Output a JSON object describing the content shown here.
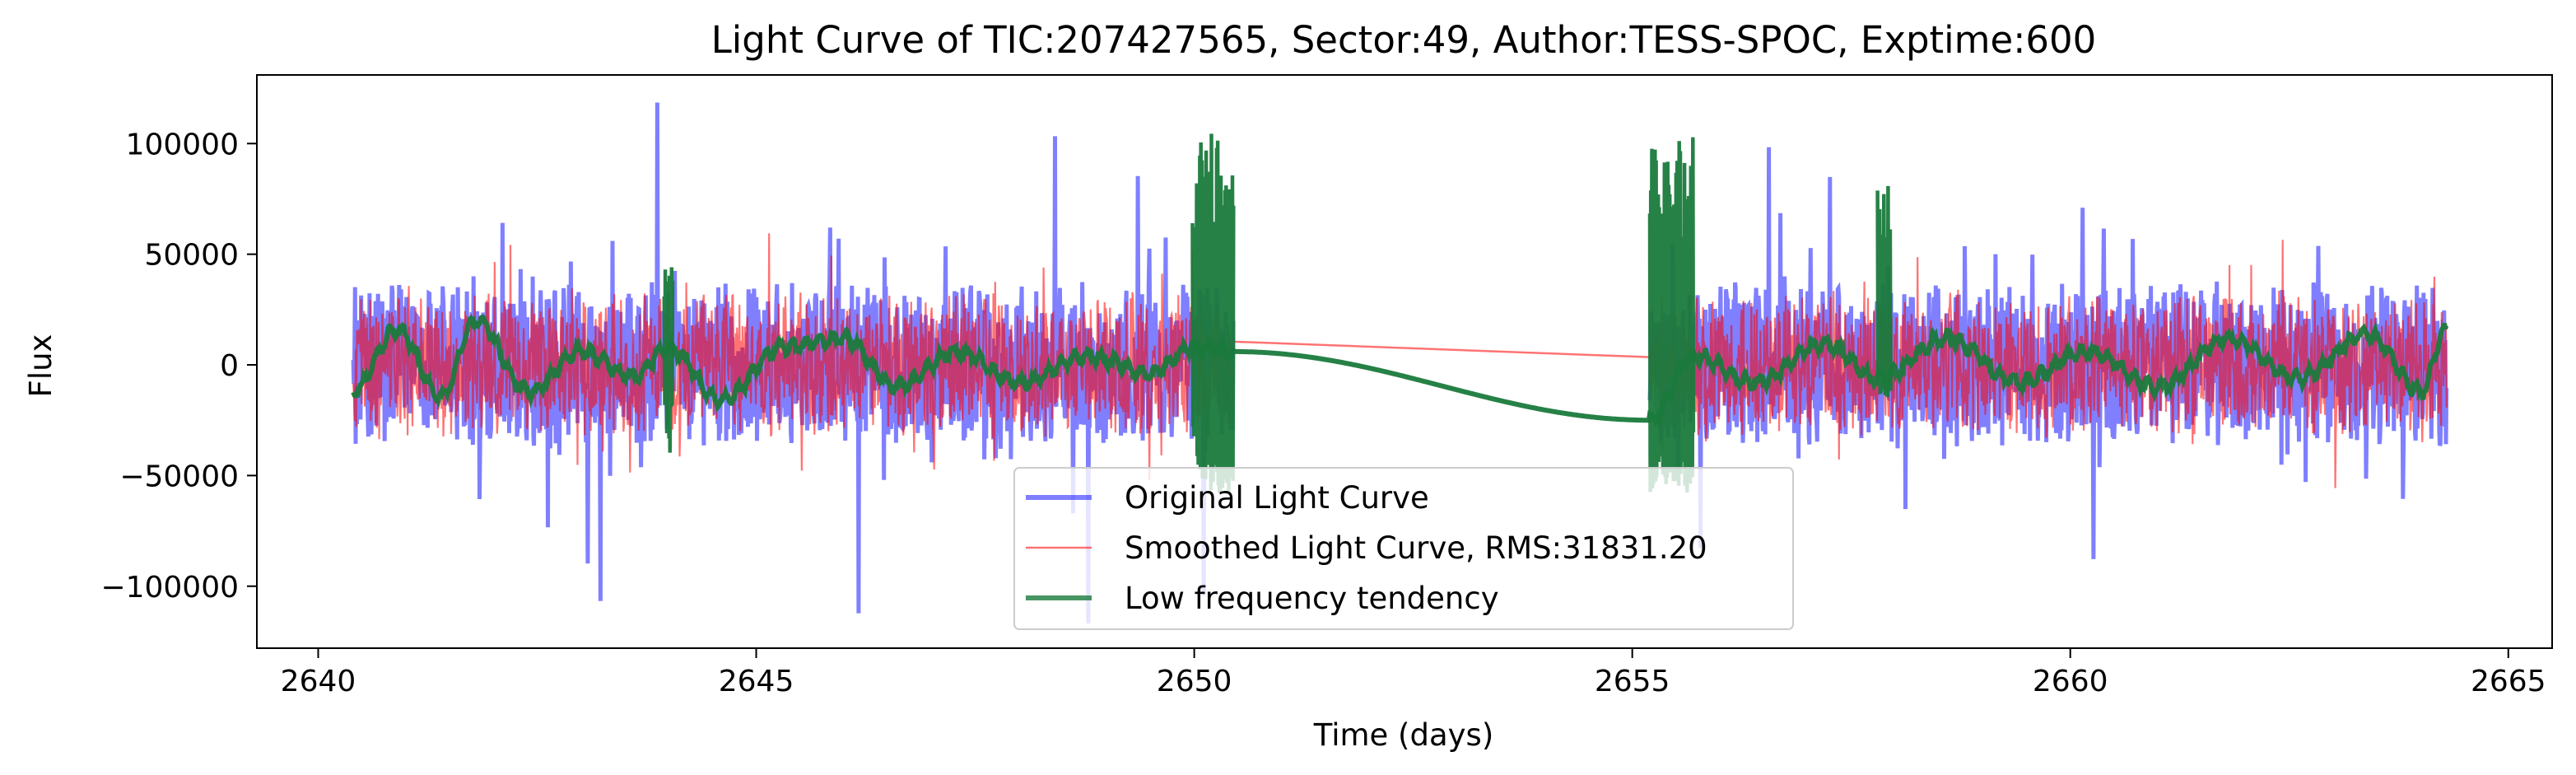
{
  "chart_data": {
    "type": "line",
    "title": "Light Curve of TIC:207427565, Sector:49, Author:TESS-SPOC, Exptime:600",
    "xlabel": "Time (days)",
    "ylabel": "Flux",
    "xlim": [
      2639.3,
      2665.5
    ],
    "ylim": [
      -128000,
      131000
    ],
    "xticks": [
      2640,
      2645,
      2650,
      2655,
      2660,
      2665
    ],
    "xtick_labels": [
      "2640",
      "2645",
      "2650",
      "2655",
      "2660",
      "2665"
    ],
    "yticks": [
      -100000,
      -50000,
      0,
      50000,
      100000
    ],
    "ytick_labels": [
      "−100000",
      "−50000",
      "0",
      "50000",
      "100000"
    ],
    "grid": false,
    "legend_position": "bottom-center",
    "segments": [
      [
        2640.4,
        2650.45
      ],
      [
        2655.2,
        2664.3
      ]
    ],
    "series": [
      {
        "name": "Original Light Curve",
        "color": "#0000ff",
        "opacity": 0.5,
        "style": "noise",
        "amplitude": 38000,
        "spike_max": 119000,
        "spike_min": -117000
      },
      {
        "name": "Smoothed Light Curve, RMS:31831.20",
        "color": "#ff0000",
        "opacity": 0.55,
        "style": "noise",
        "amplitude": 33000,
        "bridge": [
          [
            2650.45,
            10500
          ],
          [
            2655.2,
            3500
          ]
        ]
      },
      {
        "name": "Low frequency tendency",
        "color": "#1a7a3c",
        "opacity": 0.95,
        "style": "smooth",
        "key_points": [
          [
            2640.4,
            -12000
          ],
          [
            2640.9,
            16000
          ],
          [
            2641.4,
            -14000
          ],
          [
            2641.8,
            20000
          ],
          [
            2642.4,
            -12000
          ],
          [
            2643.0,
            6000
          ],
          [
            2643.6,
            -5000
          ],
          [
            2644.0,
            8000
          ],
          [
            2644.6,
            -16000
          ],
          [
            2645.3,
            8000
          ],
          [
            2646.0,
            12000
          ],
          [
            2646.6,
            -10000
          ],
          [
            2647.3,
            6000
          ],
          [
            2648.0,
            -8000
          ],
          [
            2648.8,
            4000
          ],
          [
            2649.5,
            -4000
          ],
          [
            2649.98,
            8000
          ],
          [
            2650.45,
            6000
          ],
          [
            2655.2,
            -25000
          ],
          [
            2655.7,
            4000
          ],
          [
            2656.4,
            -8000
          ],
          [
            2657.2,
            10000
          ],
          [
            2657.8,
            -6000
          ],
          [
            2658.6,
            12000
          ],
          [
            2659.4,
            -8000
          ],
          [
            2660.2,
            6000
          ],
          [
            2661.0,
            -10000
          ],
          [
            2661.8,
            12000
          ],
          [
            2662.6,
            -6000
          ],
          [
            2663.4,
            14000
          ],
          [
            2664.0,
            -12000
          ],
          [
            2664.3,
            16000
          ]
        ],
        "edge_bursts": [
          {
            "x_range": [
              2649.98,
              2650.45
            ],
            "max": 105000,
            "min": -58000
          },
          {
            "x_range": [
              2655.2,
              2655.7
            ],
            "max": 104000,
            "min": -58000
          },
          {
            "x_range": [
              2657.8,
              2657.95
            ],
            "max": 83000,
            "min": -15000
          },
          {
            "x_range": [
              2643.95,
              2644.05
            ],
            "max": 46000,
            "min": -40000
          }
        ]
      }
    ]
  }
}
